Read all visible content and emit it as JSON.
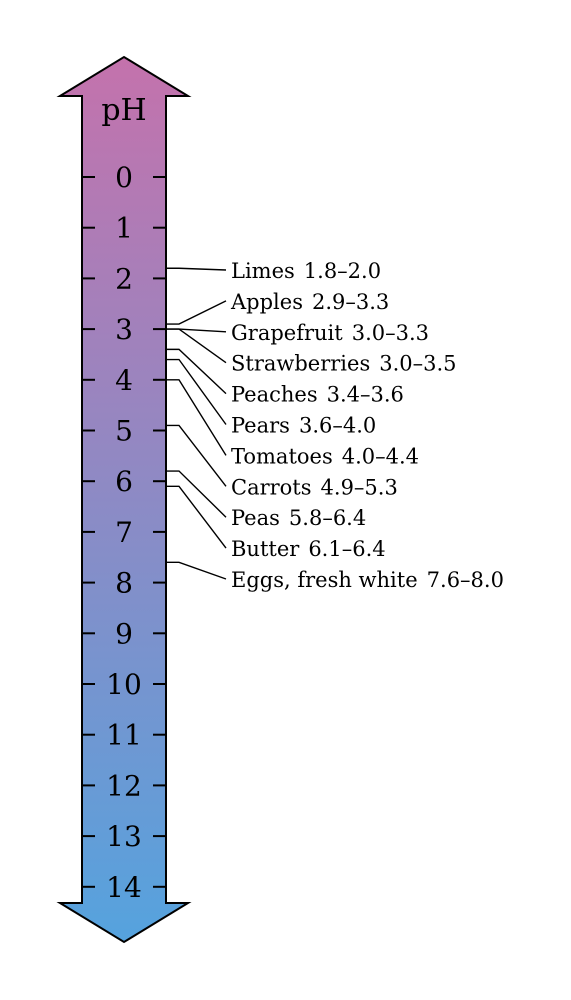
{
  "scale": {
    "title": "pH",
    "min": 0,
    "max": 14,
    "gradient_top": "#c472ac",
    "gradient_bottom": "#55a3de",
    "ticks": [
      "0",
      "1",
      "2",
      "3",
      "4",
      "5",
      "6",
      "7",
      "8",
      "9",
      "10",
      "11",
      "12",
      "13",
      "14"
    ]
  },
  "foods": [
    {
      "name": "Limes",
      "range": "1.8–2.0",
      "low": 1.8,
      "high": 2.0
    },
    {
      "name": "Apples",
      "range": "2.9–3.3",
      "low": 2.9,
      "high": 3.3
    },
    {
      "name": "Grapefruit",
      "range": "3.0–3.3",
      "low": 3.0,
      "high": 3.3
    },
    {
      "name": "Strawberries",
      "range": "3.0–3.5",
      "low": 3.0,
      "high": 3.5
    },
    {
      "name": "Peaches",
      "range": "3.4–3.6",
      "low": 3.4,
      "high": 3.6
    },
    {
      "name": "Pears",
      "range": "3.6–4.0",
      "low": 3.6,
      "high": 4.0
    },
    {
      "name": "Tomatoes",
      "range": "4.0–4.4",
      "low": 4.0,
      "high": 4.4
    },
    {
      "name": "Carrots",
      "range": "4.9–5.3",
      "low": 4.9,
      "high": 5.3
    },
    {
      "name": "Peas",
      "range": "5.8–6.4",
      "low": 5.8,
      "high": 6.4
    },
    {
      "name": "Butter",
      "range": "6.1–6.4",
      "low": 6.1,
      "high": 6.4
    },
    {
      "name": "Eggs, fresh white",
      "range": "7.6–8.0",
      "low": 7.6,
      "high": 8.0
    }
  ]
}
